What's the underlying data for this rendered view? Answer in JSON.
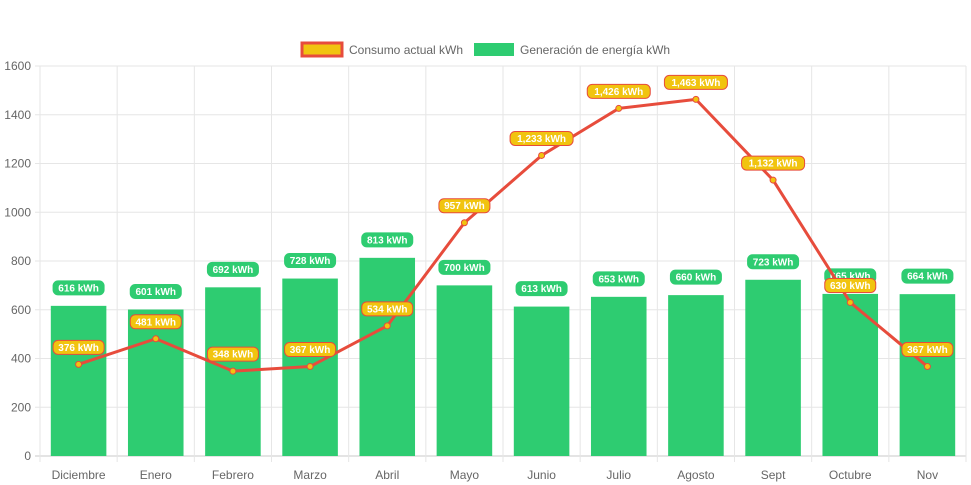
{
  "chart_data": {
    "type": "bar",
    "categories": [
      "Diciembre",
      "Enero",
      "Febrero",
      "Marzo",
      "Abril",
      "Mayo",
      "Junio",
      "Julio",
      "Agosto",
      "Sept",
      "Octubre",
      "Nov"
    ],
    "series": [
      {
        "name": "Consumo actual kWh",
        "type": "line",
        "values": [
          376,
          481,
          348,
          367,
          534,
          957,
          1233,
          1426,
          1463,
          1132,
          630,
          367
        ],
        "labels": [
          "376 kWh",
          "481 kWh",
          "348 kWh",
          "367 kWh",
          "534 kWh",
          "957 kWh",
          "1,233 kWh",
          "1,426 kWh",
          "1,463 kWh",
          "1,132 kWh",
          "630 kWh",
          "367 kWh"
        ],
        "line_color": "#e74c3c",
        "label_color": "#f1c40f"
      },
      {
        "name": "Generación de energía kWh",
        "type": "bar",
        "values": [
          616,
          601,
          692,
          728,
          813,
          700,
          613,
          653,
          660,
          723,
          665,
          664
        ],
        "labels": [
          "616 kWh",
          "601 kWh",
          "692 kWh",
          "728 kWh",
          "813 kWh",
          "700 kWh",
          "613 kWh",
          "653 kWh",
          "660 kWh",
          "723 kWh",
          "665 kWh",
          "664 kWh"
        ],
        "color": "#2ecc71"
      }
    ],
    "ylim": [
      0,
      1600
    ],
    "yticks": [
      0,
      200,
      400,
      600,
      800,
      1000,
      1200,
      1400,
      1600
    ],
    "ytick_labels": [
      "0",
      "200",
      "400",
      "600",
      "800",
      "1000",
      "1200",
      "1400",
      "1600"
    ],
    "grid": true,
    "legend_position": "top-center"
  }
}
